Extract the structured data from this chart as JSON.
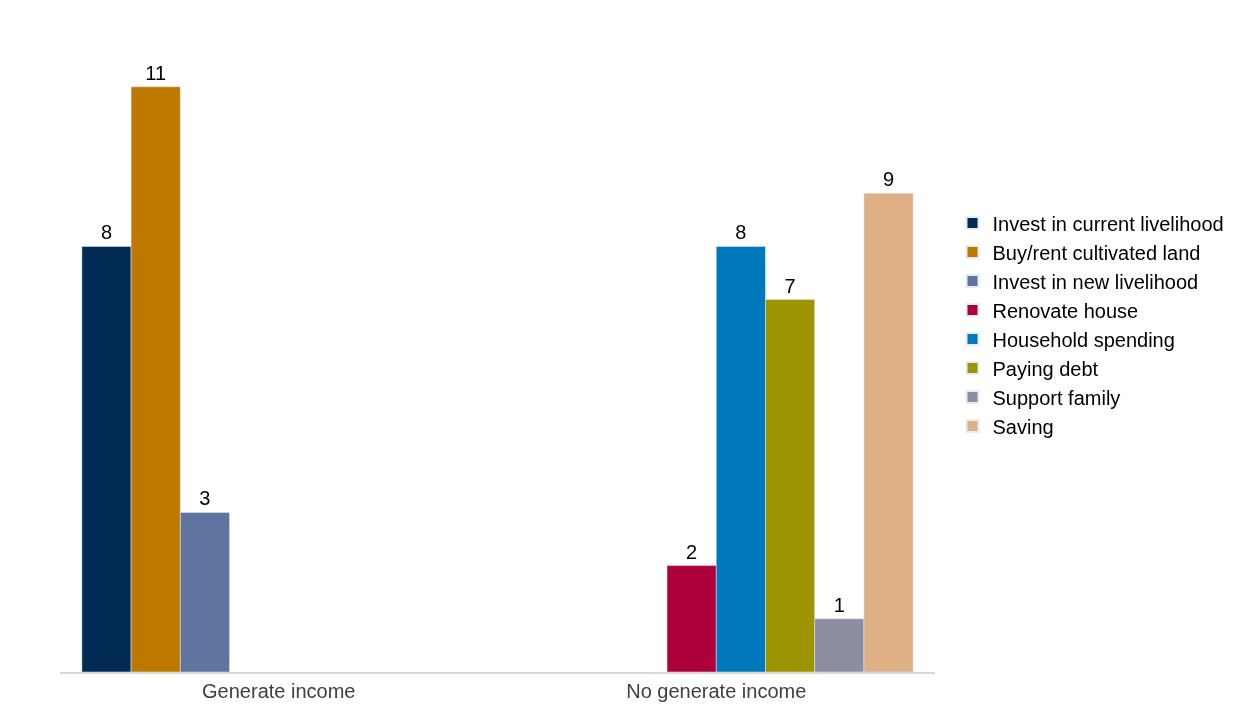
{
  "chart_data": {
    "type": "bar",
    "categories": [
      "Generate income",
      "No generate income"
    ],
    "series": [
      {
        "name": "Invest in current livelihood",
        "color": "#002b55",
        "values": [
          8,
          null
        ]
      },
      {
        "name": "Buy/rent cultivated land",
        "color": "#bd7800",
        "values": [
          11,
          null
        ]
      },
      {
        "name": "Invest in new livelihood",
        "color": "#5f75a0",
        "values": [
          3,
          null
        ]
      },
      {
        "name": "Renovate house",
        "color": "#ad003a",
        "values": [
          null,
          2
        ]
      },
      {
        "name": "Household spending",
        "color": "#0079bc",
        "values": [
          null,
          8
        ]
      },
      {
        "name": "Paying debt",
        "color": "#9c9400",
        "values": [
          null,
          7
        ]
      },
      {
        "name": "Support family",
        "color": "#8a8ea0",
        "values": [
          null,
          1
        ]
      },
      {
        "name": "Saving",
        "color": "#dfaf85",
        "values": [
          null,
          9
        ]
      }
    ],
    "data_labels": true,
    "legend": "right",
    "tick_labels": "x"
  }
}
